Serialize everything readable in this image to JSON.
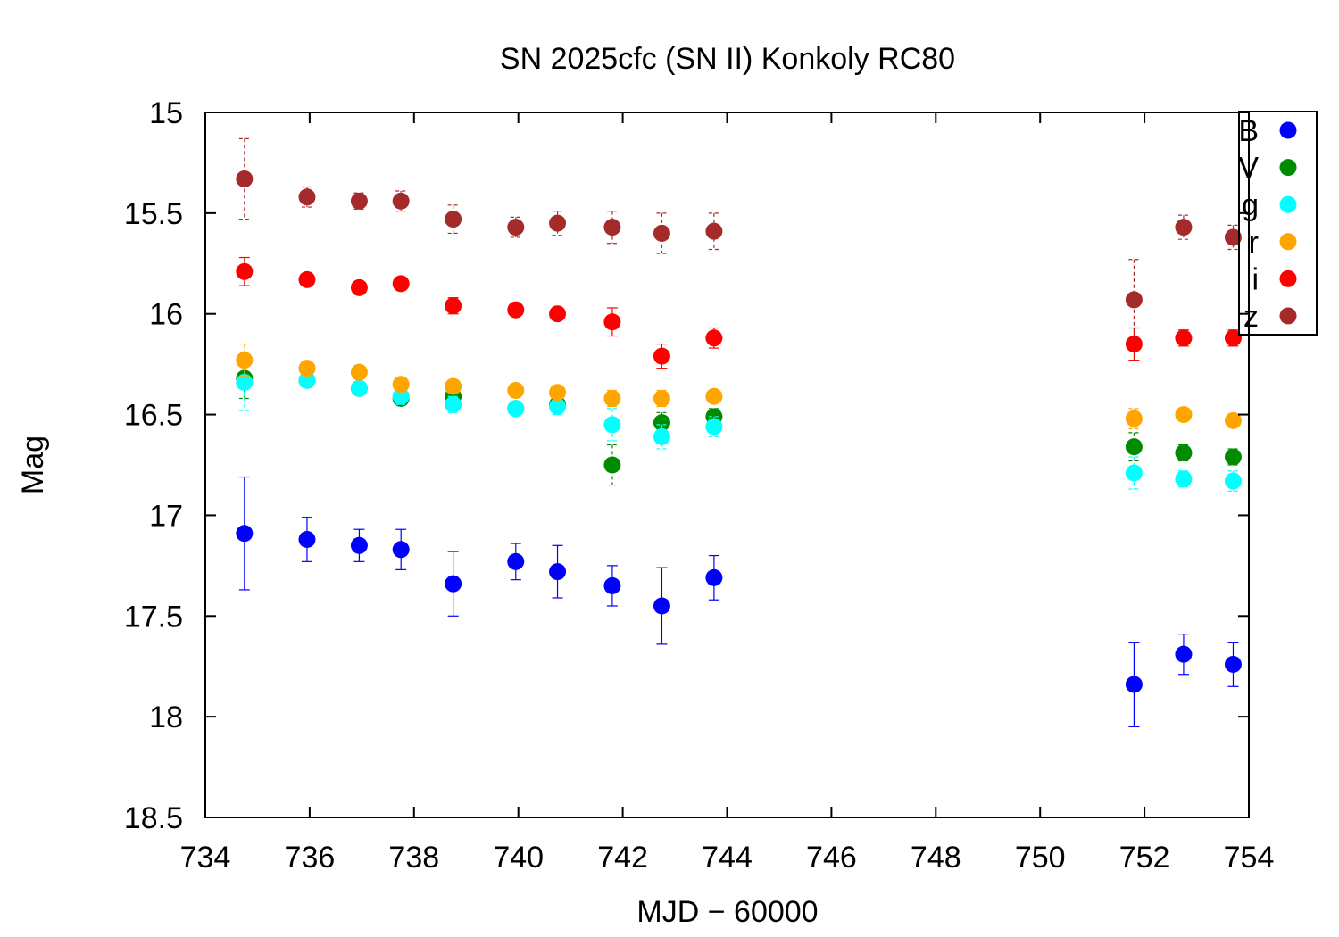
{
  "chart_data": {
    "type": "scatter",
    "title": "SN 2025cfc (SN II) Konkoly RC80",
    "xlabel": "MJD − 60000",
    "ylabel": "Mag",
    "xlim": [
      734,
      754
    ],
    "ylim": [
      18.5,
      15
    ],
    "y_inverted": true,
    "xticks": [
      "734",
      "736",
      "738",
      "740",
      "742",
      "744",
      "746",
      "748",
      "750",
      "752",
      "754"
    ],
    "yticks": [
      "15",
      "15.5",
      "16",
      "16.5",
      "17",
      "17.5",
      "18",
      "18.5"
    ],
    "grid": false,
    "legend_position": "top-right",
    "series": [
      {
        "name": "B",
        "color": "#0000ff",
        "x": [
          734.75,
          735.95,
          736.95,
          737.75,
          738.75,
          739.95,
          740.75,
          741.8,
          742.75,
          743.75,
          751.8,
          752.75,
          753.7
        ],
        "y": [
          17.09,
          17.12,
          17.15,
          17.17,
          17.34,
          17.23,
          17.28,
          17.35,
          17.45,
          17.31,
          17.84,
          17.69,
          17.74
        ],
        "err": [
          0.28,
          0.11,
          0.08,
          0.1,
          0.16,
          0.09,
          0.13,
          0.1,
          0.19,
          0.11,
          0.21,
          0.1,
          0.11
        ]
      },
      {
        "name": "V",
        "color": "#008c00",
        "x": [
          734.75,
          735.95,
          736.95,
          737.75,
          738.75,
          739.95,
          740.75,
          741.8,
          742.75,
          743.75,
          751.8,
          752.75,
          753.7
        ],
        "y": [
          16.32,
          16.33,
          16.37,
          16.42,
          16.41,
          16.47,
          16.45,
          16.75,
          16.54,
          16.51,
          16.66,
          16.69,
          16.71
        ],
        "err": [
          0.1,
          0.03,
          0.03,
          0.03,
          0.03,
          0.03,
          0.03,
          0.1,
          0.05,
          0.04,
          0.07,
          0.04,
          0.04
        ]
      },
      {
        "name": "g",
        "color": "#00ffff",
        "x": [
          734.75,
          735.95,
          736.95,
          737.75,
          738.75,
          739.95,
          740.75,
          741.8,
          742.75,
          743.75,
          751.8,
          752.75,
          753.7
        ],
        "y": [
          16.34,
          16.33,
          16.37,
          16.41,
          16.45,
          16.47,
          16.46,
          16.55,
          16.61,
          16.56,
          16.79,
          16.82,
          16.83
        ],
        "err": [
          0.14,
          0.03,
          0.03,
          0.04,
          0.04,
          0.03,
          0.04,
          0.08,
          0.06,
          0.05,
          0.08,
          0.04,
          0.05
        ]
      },
      {
        "name": "r",
        "color": "#ffa500",
        "x": [
          734.75,
          735.95,
          736.95,
          737.75,
          738.75,
          739.95,
          740.75,
          741.8,
          742.75,
          743.75,
          751.8,
          752.75,
          753.7
        ],
        "y": [
          16.23,
          16.27,
          16.29,
          16.35,
          16.36,
          16.38,
          16.39,
          16.42,
          16.42,
          16.41,
          16.52,
          16.5,
          16.53
        ],
        "err": [
          0.08,
          0.03,
          0.03,
          0.03,
          0.03,
          0.03,
          0.03,
          0.04,
          0.04,
          0.03,
          0.05,
          0.03,
          0.03
        ]
      },
      {
        "name": "i",
        "color": "#ff0000",
        "x": [
          734.75,
          735.95,
          736.95,
          737.75,
          738.75,
          739.95,
          740.75,
          741.8,
          742.75,
          743.75,
          751.8,
          752.75,
          753.7
        ],
        "y": [
          15.79,
          15.83,
          15.87,
          15.85,
          15.96,
          15.98,
          16.0,
          16.04,
          16.21,
          16.12,
          16.15,
          16.12,
          16.12
        ],
        "err": [
          0.07,
          0.03,
          0.03,
          0.03,
          0.04,
          0.03,
          0.03,
          0.07,
          0.06,
          0.05,
          0.08,
          0.04,
          0.04
        ]
      },
      {
        "name": "z",
        "color": "#a52a2a",
        "x": [
          734.75,
          735.95,
          736.95,
          737.75,
          738.75,
          739.95,
          740.75,
          741.8,
          742.75,
          743.75,
          751.8,
          752.75,
          753.7
        ],
        "y": [
          15.33,
          15.42,
          15.44,
          15.44,
          15.53,
          15.57,
          15.55,
          15.57,
          15.6,
          15.59,
          15.93,
          15.57,
          15.62
        ],
        "err": [
          0.2,
          0.05,
          0.04,
          0.05,
          0.07,
          0.05,
          0.06,
          0.08,
          0.1,
          0.09,
          0.2,
          0.06,
          0.06
        ]
      }
    ]
  }
}
